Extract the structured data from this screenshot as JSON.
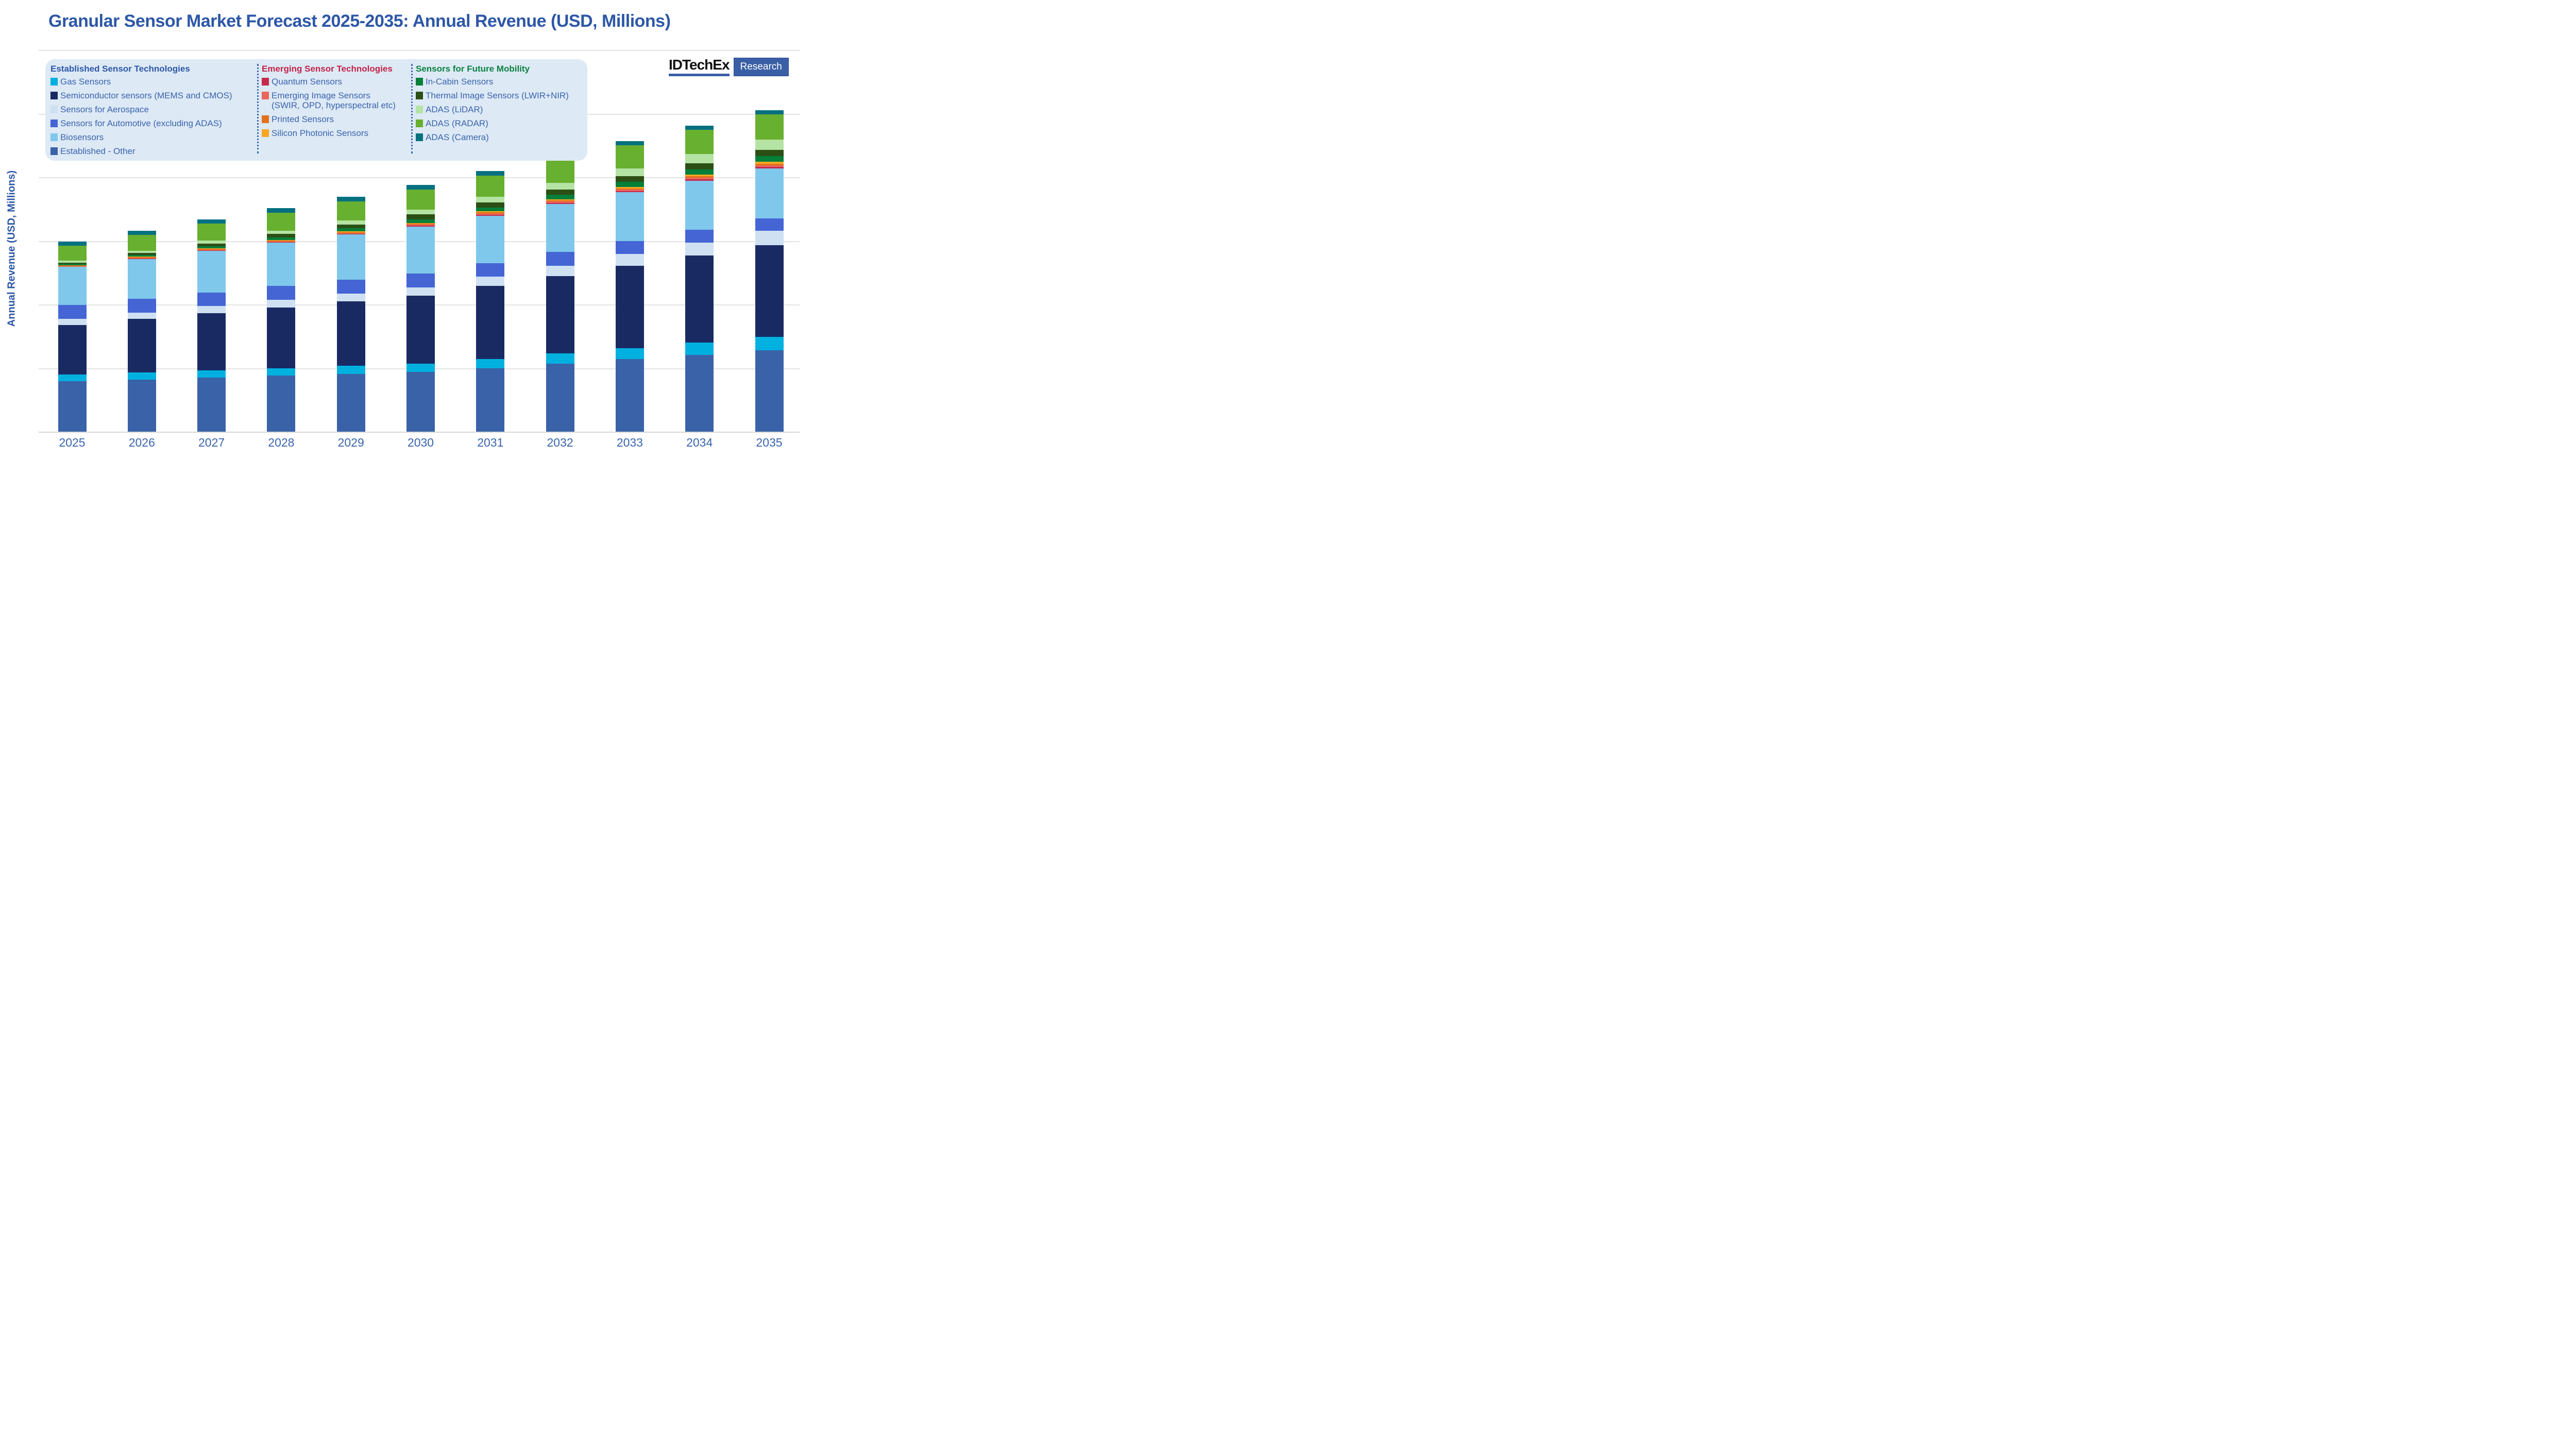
{
  "title": "Granular Sensor Market Forecast 2025-2035: Annual Revenue (USD, Millions)",
  "y_axis": {
    "label": "Annual Revenue (USD, Millions)",
    "tick_labels_visible": false,
    "gridline_count": 7
  },
  "logo": {
    "name": "IDTechEx",
    "sub": "Research",
    "accent_color": "#3a5fa6"
  },
  "legend": {
    "groups": [
      {
        "header": "Established Sensor Technologies",
        "header_color": "#2d57a7",
        "items": [
          {
            "series_key": "gas",
            "label": "Gas Sensors"
          },
          {
            "series_key": "semiconductor",
            "label": "Semiconductor sensors (MEMS and CMOS)"
          },
          {
            "series_key": "aerospace",
            "label": "Sensors for Aerospace"
          },
          {
            "series_key": "automotive",
            "label": "Sensors for Automotive (excluding ADAS)"
          },
          {
            "series_key": "biosensors",
            "label": "Biosensors"
          },
          {
            "series_key": "established_other",
            "label": "Established - Other"
          }
        ]
      },
      {
        "header": "Emerging Sensor Technologies",
        "header_color": "#c32347",
        "items": [
          {
            "series_key": "quantum",
            "label": "Quantum Sensors"
          },
          {
            "series_key": "emerging_image",
            "label": "Emerging Image Sensors",
            "label2": "(SWIR, OPD, hyperspectral etc)"
          },
          {
            "series_key": "printed",
            "label": "Printed Sensors"
          },
          {
            "series_key": "silicon_photonic",
            "label": "Silicon Photonic Sensors"
          }
        ]
      },
      {
        "header": "Sensors for Future Mobility",
        "header_color": "#0b8040",
        "items": [
          {
            "series_key": "in_cabin",
            "label": "In-Cabin Sensors"
          },
          {
            "series_key": "thermal",
            "label": "Thermal Image Sensors (LWIR+NIR)"
          },
          {
            "series_key": "lidar",
            "label": "ADAS (LiDAR)"
          },
          {
            "series_key": "radar",
            "label": "ADAS (RADAR)"
          },
          {
            "series_key": "camera",
            "label": "ADAS (Camera)"
          }
        ]
      }
    ]
  },
  "chart_data": {
    "type": "bar",
    "stacked": true,
    "title": "Granular Sensor Market Forecast 2025-2035: Annual Revenue (USD, Millions)",
    "xlabel": "",
    "ylabel": "Annual Revenue (USD, Millions)",
    "categories": [
      "2025",
      "2026",
      "2027",
      "2028",
      "2029",
      "2030",
      "2031",
      "2032",
      "2033",
      "2034",
      "2035"
    ],
    "value_unit": "relative units; y-axis is unlabeled in source, 1 unit = 1 gridline interval",
    "ylim": [
      0,
      6
    ],
    "grid": true,
    "legend_position": "top-left panel, three grouped columns",
    "stack_order": "bottom to top as listed in series",
    "series": [
      {
        "key": "established_other",
        "name": "Established - Other",
        "color": "#3a62a8",
        "values": [
          0.79,
          0.82,
          0.85,
          0.88,
          0.91,
          0.94,
          1.0,
          1.07,
          1.14,
          1.21,
          1.28
        ]
      },
      {
        "key": "gas",
        "name": "Gas Sensors",
        "color": "#00b1e0",
        "values": [
          0.108,
          0.112,
          0.116,
          0.12,
          0.124,
          0.128,
          0.143,
          0.159,
          0.175,
          0.192,
          0.21
        ]
      },
      {
        "key": "semiconductor",
        "name": "Semiconductor sensors (MEMS and CMOS)",
        "color": "#192a63",
        "values": [
          0.78,
          0.838,
          0.896,
          0.954,
          1.013,
          1.074,
          1.145,
          1.218,
          1.291,
          1.365,
          1.44
        ]
      },
      {
        "key": "aerospace",
        "name": "Sensors for Aerospace",
        "color": "#cfe0f3",
        "values": [
          0.098,
          0.104,
          0.11,
          0.116,
          0.122,
          0.128,
          0.146,
          0.165,
          0.185,
          0.205,
          0.225
        ]
      },
      {
        "key": "automotive",
        "name": "Sensors for Automotive (excluding ADAS)",
        "color": "#4565d5",
        "values": [
          0.217,
          0.218,
          0.218,
          0.219,
          0.219,
          0.219,
          0.215,
          0.211,
          0.207,
          0.203,
          0.2
        ]
      },
      {
        "key": "biosensors",
        "name": "Biosensors",
        "color": "#7fc8eb",
        "values": [
          0.596,
          0.625,
          0.654,
          0.682,
          0.71,
          0.738,
          0.748,
          0.757,
          0.765,
          0.773,
          0.78
        ]
      },
      {
        "key": "quantum",
        "name": "Quantum Sensors",
        "color": "#c52a4d",
        "values": [
          0.004,
          0.005,
          0.007,
          0.008,
          0.01,
          0.012,
          0.015,
          0.018,
          0.021,
          0.024,
          0.028
        ]
      },
      {
        "key": "emerging_image",
        "name": "Emerging Image Sensors (SWIR, OPD, hyperspectral etc)",
        "color": "#e8685c",
        "values": [
          0.009,
          0.01,
          0.011,
          0.012,
          0.014,
          0.015,
          0.017,
          0.019,
          0.021,
          0.023,
          0.025
        ]
      },
      {
        "key": "printed",
        "name": "Printed Sensors",
        "color": "#e2711d",
        "values": [
          0.014,
          0.015,
          0.015,
          0.016,
          0.016,
          0.016,
          0.017,
          0.018,
          0.02,
          0.021,
          0.023
        ]
      },
      {
        "key": "silicon_photonic",
        "name": "Silicon Photonic Sensors",
        "color": "#f7a823",
        "values": [
          0.002,
          0.003,
          0.005,
          0.007,
          0.01,
          0.013,
          0.016,
          0.02,
          0.024,
          0.027,
          0.03
        ]
      },
      {
        "key": "in_cabin",
        "name": "In-Cabin Sensors",
        "color": "#067f39",
        "values": [
          0.022,
          0.028,
          0.034,
          0.041,
          0.048,
          0.055,
          0.062,
          0.069,
          0.076,
          0.083,
          0.091
        ]
      },
      {
        "key": "thermal",
        "name": "Thermal Image Sensors (LWIR+NIR)",
        "color": "#2c4f16",
        "values": [
          0.017,
          0.028,
          0.04,
          0.052,
          0.064,
          0.077,
          0.082,
          0.087,
          0.092,
          0.097,
          0.102
        ]
      },
      {
        "key": "lidar",
        "name": "ADAS (LiDAR)",
        "color": "#b5e3a4",
        "values": [
          0.03,
          0.038,
          0.046,
          0.055,
          0.064,
          0.074,
          0.089,
          0.105,
          0.122,
          0.139,
          0.157
        ]
      },
      {
        "key": "radar",
        "name": "ADAS (RADAR)",
        "color": "#68b02f",
        "values": [
          0.234,
          0.25,
          0.266,
          0.282,
          0.298,
          0.314,
          0.33,
          0.347,
          0.364,
          0.381,
          0.398
        ]
      },
      {
        "key": "camera",
        "name": "ADAS (Camera)",
        "color": "#057180",
        "values": [
          0.065,
          0.067,
          0.069,
          0.07,
          0.072,
          0.074,
          0.071,
          0.068,
          0.066,
          0.063,
          0.061
        ]
      }
    ]
  }
}
